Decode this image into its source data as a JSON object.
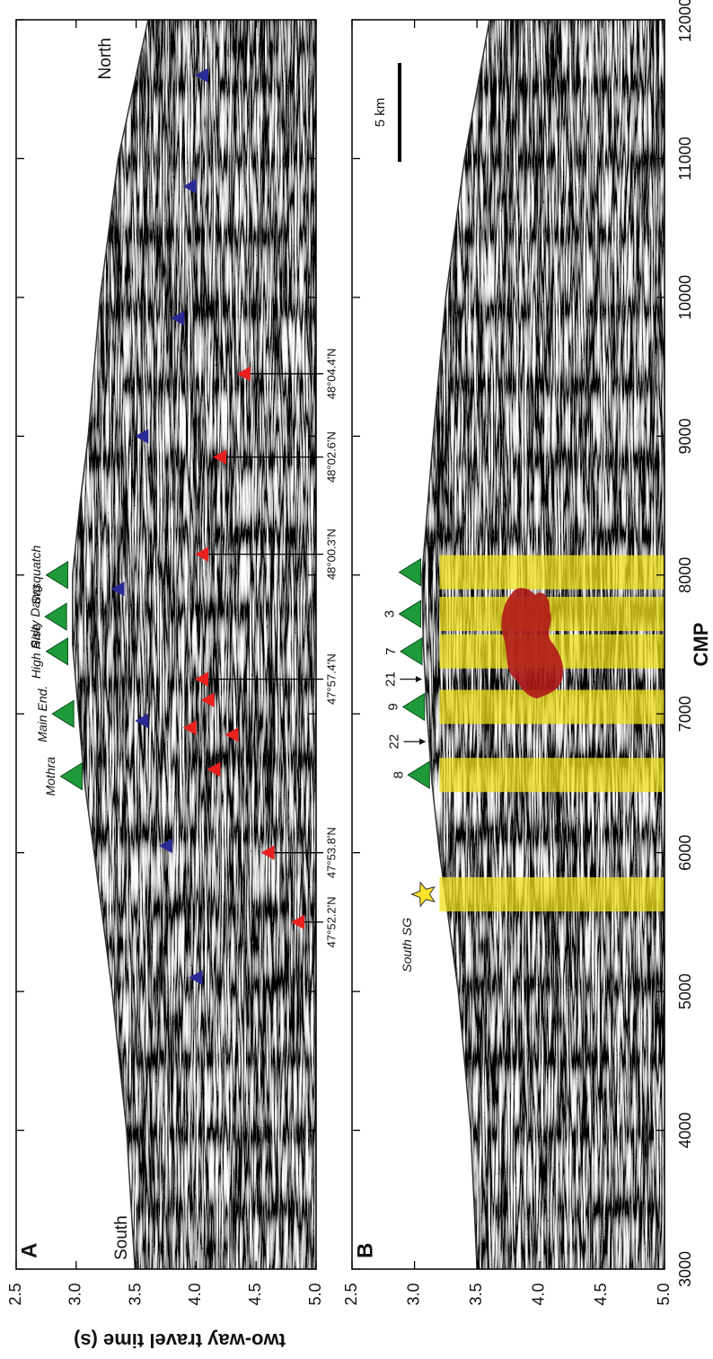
{
  "chart_data": [
    {
      "type": "seismic-section",
      "panel": "A",
      "south": "South",
      "north": "North",
      "xlim": [
        3000,
        12000
      ],
      "xticks": [
        3000,
        4000,
        5000,
        6000,
        7000,
        8000,
        9000,
        10000,
        11000,
        12000
      ],
      "ylim": [
        2.5,
        5
      ],
      "yticks": [
        2.5,
        {
          "value": 3,
          "label": "3.0"
        },
        3.5,
        {
          "value": 4,
          "label": "4.0"
        },
        4.5,
        {
          "value": 5,
          "label": "5.0"
        }
      ],
      "ylabel": "two-way travel time (s)",
      "seafloor": {
        "x": [
          3000,
          4000,
          5000,
          6000,
          6500,
          7000,
          7500,
          8000,
          8500,
          9000,
          10000,
          11000,
          12000
        ],
        "y": [
          3.49,
          3.42,
          3.3,
          3.15,
          3.07,
          3.02,
          2.97,
          2.97,
          3.03,
          3.1,
          3.2,
          3.35,
          3.6
        ]
      },
      "vents": {
        "color": "#1f9a3a",
        "points": [
          {
            "name": "Mothra",
            "x": 6550,
            "y": 3.05
          },
          {
            "name": "Main End.",
            "x": 7000,
            "y": 2.98
          },
          {
            "name": "High Rise",
            "x": 7450,
            "y": 2.93
          },
          {
            "name": "Salty Dawg",
            "x": 7700,
            "y": 2.92
          },
          {
            "name": "Sasquatch",
            "x": 8000,
            "y": 2.93
          }
        ]
      },
      "red_triangles": {
        "color": "#e8211f",
        "points": [
          {
            "x": 5500,
            "y": 4.85,
            "label": "47°52.2'N"
          },
          {
            "x": 6000,
            "y": 4.6,
            "label": "47°53.8'N"
          },
          {
            "x": 6600,
            "y": 4.15
          },
          {
            "x": 6900,
            "y": 3.95
          },
          {
            "x": 6850,
            "y": 4.3
          },
          {
            "x": 7100,
            "y": 4.1
          },
          {
            "x": 7250,
            "y": 4.05,
            "label": "47°57.4'N"
          },
          {
            "x": 8150,
            "y": 4.05,
            "label": "48°00.3'N"
          },
          {
            "x": 8850,
            "y": 4.2,
            "label": "48°02.6'N"
          },
          {
            "x": 9450,
            "y": 4.4,
            "label": "48°04.4'N"
          }
        ]
      },
      "blue_triangles": {
        "color": "#2a2a96",
        "points": [
          {
            "x": 5100,
            "y": 4.0
          },
          {
            "x": 6050,
            "y": 3.75
          },
          {
            "x": 6950,
            "y": 3.55
          },
          {
            "x": 7900,
            "y": 3.35
          },
          {
            "x": 9000,
            "y": 3.55
          },
          {
            "x": 9850,
            "y": 3.85
          },
          {
            "x": 10800,
            "y": 3.95
          },
          {
            "x": 11600,
            "y": 4.05
          }
        ]
      }
    },
    {
      "type": "seismic-section",
      "panel": "B",
      "scale_bar": "5 km",
      "xlim": [
        3000,
        12000
      ],
      "xticks": [
        3000,
        4000,
        5000,
        6000,
        7000,
        8000,
        9000,
        10000,
        11000,
        12000
      ],
      "xlabel": "CMP",
      "ylim": [
        2.5,
        5
      ],
      "yticks": [
        2.5,
        {
          "value": 3,
          "label": "3.0"
        },
        3.5,
        {
          "value": 4,
          "label": "4.0"
        },
        4.5,
        {
          "value": 5,
          "label": "5.0"
        }
      ],
      "seafloor": {
        "x": [
          3000,
          4000,
          5000,
          6000,
          6500,
          7000,
          7500,
          8000,
          9000,
          10000,
          11000,
          12000
        ],
        "y": [
          3.5,
          3.45,
          3.35,
          3.2,
          3.14,
          3.1,
          3.07,
          3.06,
          3.15,
          3.25,
          3.4,
          3.6
        ]
      },
      "bands": {
        "color": "#f2e21a",
        "x": [
          5700,
          6560,
          7050,
          7450,
          7720,
          8020
        ]
      },
      "vents": {
        "color": "#1f9a3a",
        "points": [
          {
            "name": "8",
            "x": 6560,
            "y": 3.12
          },
          {
            "name": "9",
            "x": 7050,
            "y": 3.08
          },
          {
            "name": "7",
            "x": 7450,
            "y": 3.06
          },
          {
            "name": "3",
            "x": 7720,
            "y": 3.05
          },
          {
            "x": 8020,
            "y": 3.05
          }
        ]
      },
      "arrows": [
        {
          "label": "22",
          "x": 6800,
          "y": 3.1
        },
        {
          "label": "21",
          "x": 7250,
          "y": 3.07
        }
      ],
      "star": {
        "name": "South SG",
        "x": 5700,
        "y": 3.15,
        "color": "#ffe22a"
      }
    }
  ]
}
